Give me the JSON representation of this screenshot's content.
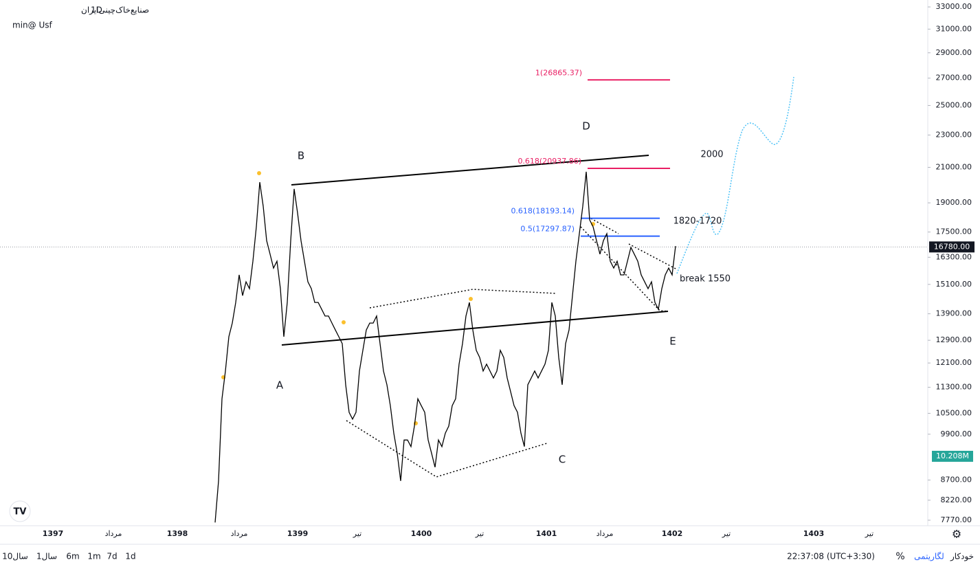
{
  "header": {
    "symbol": "صنایع‌خاک‌چینی‌ایران",
    "interval": "1D",
    "note": "min@ Usf"
  },
  "chart_data": {
    "type": "line",
    "color": "#000000",
    "log": true,
    "ylim": [
      7650,
      33650
    ],
    "yticks": [
      {
        "value": 33000,
        "label": "33000.00"
      },
      {
        "value": 31000,
        "label": "31000.00"
      },
      {
        "value": 29000,
        "label": "29000.00"
      },
      {
        "value": 27000,
        "label": "27000.00"
      },
      {
        "value": 25000,
        "label": "25000.00"
      },
      {
        "value": 23000,
        "label": "23000.00"
      },
      {
        "value": 21000,
        "label": "21000.00"
      },
      {
        "value": 19000,
        "label": "19000.00"
      },
      {
        "value": 17500,
        "label": "17500.00"
      },
      {
        "value": 16300,
        "label": "16300.00"
      },
      {
        "value": 15100,
        "label": "15100.00"
      },
      {
        "value": 13900,
        "label": "13900.00"
      },
      {
        "value": 12900,
        "label": "12900.00"
      },
      {
        "value": 12100,
        "label": "12100.00"
      },
      {
        "value": 11300,
        "label": "11300.00"
      },
      {
        "value": 10500,
        "label": "10500.00"
      },
      {
        "value": 9900,
        "label": "9900.00"
      },
      {
        "value": 8700,
        "label": "8700.00"
      },
      {
        "value": 8220,
        "label": "8220.00"
      },
      {
        "value": 7770,
        "label": "7770.00"
      }
    ],
    "xticks": [
      "1397",
      "مرداد",
      "1398",
      "مرداد",
      "1399",
      "تیر",
      "1400",
      "تیر",
      "1401",
      "مرداد",
      "1402",
      "تیر",
      "1403",
      "تیر"
    ],
    "values": [
      7720,
      8680,
      10940,
      11830,
      13030,
      13540,
      14350,
      15510,
      14630,
      15210,
      14920,
      16120,
      17760,
      20140,
      18820,
      17080,
      16440,
      15810,
      16120,
      14920,
      13030,
      14350,
      17080,
      19760,
      18460,
      17080,
      16120,
      15210,
      14920,
      14350,
      14350,
      14080,
      13810,
      13810,
      13540,
      13280,
      13030,
      12780,
      11380,
      10530,
      10330,
      10530,
      11830,
      12540,
      13280,
      13540,
      13540,
      13810,
      12780,
      11830,
      11380,
      10730,
      9930,
      9380,
      8680,
      9740,
      9740,
      9560,
      10130,
      10940,
      10730,
      10530,
      9740,
      9380,
      9020,
      9740,
      9560,
      9930,
      10130,
      10730,
      10940,
      12060,
      12780,
      13810,
      14350,
      13280,
      12540,
      12290,
      11830,
      12060,
      11830,
      11600,
      11830,
      12540,
      12290,
      11600,
      11160,
      10730,
      10530,
      9930,
      9560,
      11380,
      11600,
      11830,
      11600,
      11830,
      12060,
      12540,
      14350,
      13810,
      12290,
      11380,
      12780,
      13280,
      14630,
      16120,
      17420,
      18820,
      20740,
      18110,
      17760,
      17080,
      16440,
      17080,
      17420,
      16120,
      15810,
      16120,
      15510,
      15510,
      16120,
      16760,
      16440,
      16120,
      15510,
      15210,
      14920,
      15210,
      14350,
      14080,
      14920,
      15510,
      15810,
      15510,
      16820
    ],
    "last_price": {
      "value": 16780,
      "label": "16780.00"
    },
    "volume_label": "10.208M",
    "fib_levels": [
      {
        "value": 26865.37,
        "label": "1(26865.37)",
        "color": "#e91e63"
      },
      {
        "value": 20937.86,
        "label": "0.618(20937.86)",
        "color": "#e91e63"
      },
      {
        "value": 18193.14,
        "label": "0.618(18193.14)",
        "color": "#2962ff"
      },
      {
        "value": 17297.87,
        "label": "0.5(17297.87)",
        "color": "#2962ff"
      }
    ],
    "annotations": [
      "A",
      "B",
      "C",
      "D",
      "E",
      "2000",
      "1820-1720",
      "break 1550"
    ]
  },
  "toolbar": {
    "ranges": [
      "10سال",
      "1سال",
      "6m",
      "1m",
      "7d",
      "1d"
    ],
    "time": "22:37:08 (UTC+3:30)",
    "percent": "%",
    "log": "لگاریتمی",
    "auto": "خودکار"
  }
}
